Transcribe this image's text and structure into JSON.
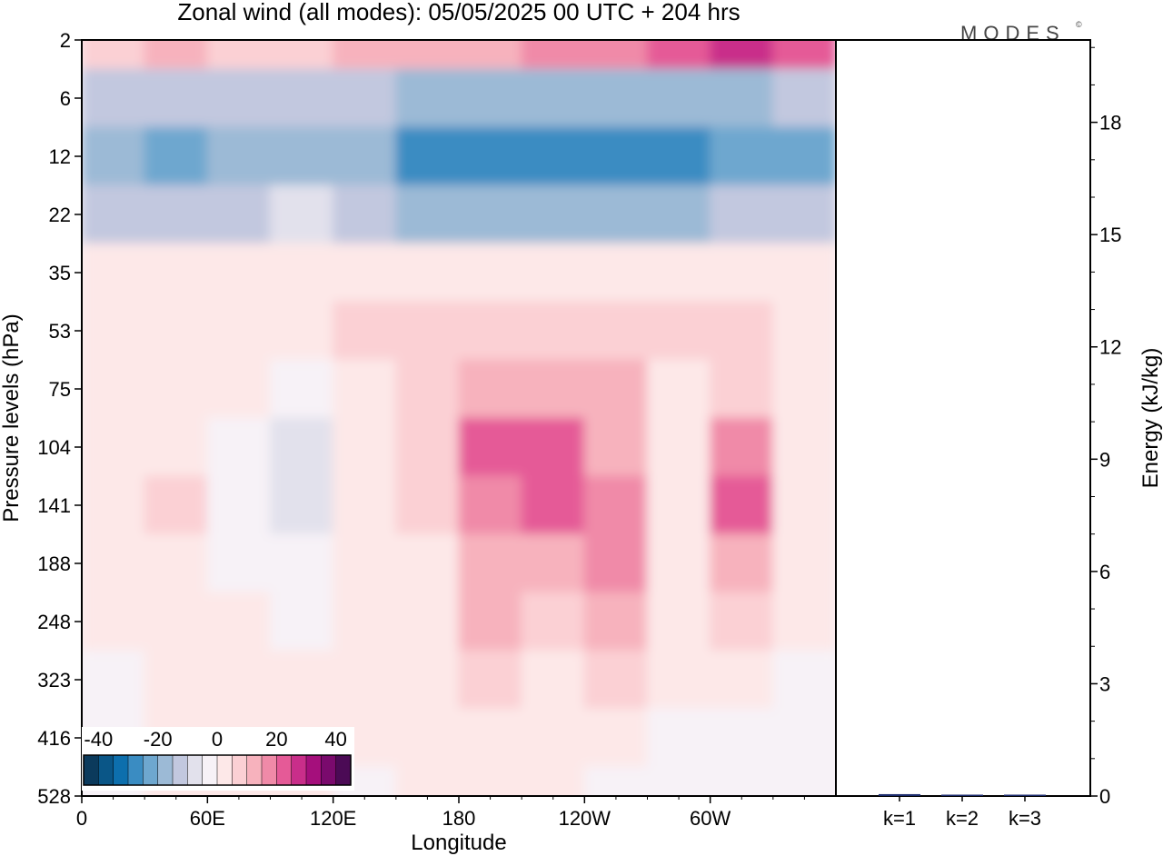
{
  "chart_data": [
    {
      "type": "heatmap",
      "title": "Zonal wind (all modes):  05/05/2025  00 UTC  + 204 hrs",
      "xlabel": "Longitude",
      "ylabel": "Pressure levels (hPa)",
      "x_ticks": [
        "0",
        "60E",
        "120E",
        "180",
        "120W",
        "60W"
      ],
      "x_tick_values_deg": [
        0,
        60,
        120,
        180,
        240,
        300
      ],
      "xlim_deg": [
        0,
        360
      ],
      "y_ticks": [
        "2",
        "6",
        "12",
        "22",
        "35",
        "53",
        "75",
        "104",
        "141",
        "188",
        "248",
        "323",
        "416",
        "528"
      ],
      "y_scale": "categorical pressure levels, top to bottom",
      "colorbar": {
        "tick_labels": [
          "-40",
          "-20",
          "0",
          "20",
          "40"
        ],
        "range": [
          -40,
          40
        ],
        "step": 5,
        "colors": [
          "#0b3a5c",
          "#0a5687",
          "#0d6fad",
          "#3a8cc2",
          "#6ea7cf",
          "#9cbad6",
          "#c2c8df",
          "#e2e1ec",
          "#f7f2f7",
          "#fde8e8",
          "#fbd0d4",
          "#f7b2bd",
          "#f08aa8",
          "#e55a97",
          "#c92e8a",
          "#a50f7c",
          "#7a0a6d",
          "#4b0a55"
        ]
      },
      "summary_grid": {
        "rows": [
          "2",
          "6",
          "12",
          "22",
          "35",
          "53",
          "75",
          "104",
          "141",
          "188",
          "248",
          "323",
          "416",
          "528"
        ],
        "columns_deg": [
          0,
          30,
          60,
          90,
          120,
          150,
          180,
          210,
          240,
          270,
          300,
          330
        ],
        "values": [
          [
            8,
            10,
            6,
            8,
            10,
            12,
            14,
            16,
            18,
            20,
            25,
            20
          ],
          [
            -12,
            -12,
            -14,
            -12,
            -14,
            -16,
            -18,
            -20,
            -20,
            -18,
            -16,
            -14
          ],
          [
            -20,
            -22,
            -20,
            -20,
            -20,
            -28,
            -30,
            -30,
            -28,
            -30,
            -25,
            -22
          ],
          [
            -12,
            -14,
            -12,
            -10,
            -12,
            -16,
            -18,
            -18,
            -16,
            -18,
            -14,
            -12
          ],
          [
            2,
            2,
            2,
            2,
            3,
            4,
            4,
            4,
            4,
            4,
            3,
            2
          ],
          [
            0,
            2,
            3,
            3,
            5,
            7,
            9,
            9,
            8,
            6,
            6,
            4
          ],
          [
            0,
            4,
            2,
            -2,
            3,
            6,
            12,
            14,
            10,
            2,
            8,
            4
          ],
          [
            0,
            4,
            -4,
            -8,
            2,
            7,
            20,
            20,
            12,
            0,
            18,
            2
          ],
          [
            2,
            6,
            -4,
            -10,
            1,
            5,
            18,
            22,
            16,
            4,
            20,
            3
          ],
          [
            1,
            3,
            -2,
            -4,
            1,
            4,
            14,
            14,
            18,
            3,
            14,
            2
          ],
          [
            0,
            2,
            0,
            -1,
            1,
            3,
            10,
            8,
            12,
            2,
            8,
            1
          ],
          [
            -2,
            1,
            0,
            1,
            1,
            2,
            5,
            3,
            6,
            0,
            3,
            -2
          ],
          [
            -4,
            0,
            1,
            1,
            0,
            0,
            1,
            1,
            0,
            -4,
            -2,
            -4
          ],
          [
            -2,
            0,
            1,
            0,
            -1,
            0,
            1,
            0,
            -4,
            -4,
            -2,
            -4
          ]
        ]
      }
    },
    {
      "type": "bar",
      "ylabel": "Energy (kJ/kg)",
      "categories": [
        "k=1",
        "k=2",
        "k=3"
      ],
      "values": [
        0.05,
        0.03,
        0.02
      ],
      "ylim": [
        0,
        20.2
      ],
      "y_ticks": [
        "0",
        "3",
        "6",
        "9",
        "12",
        "15",
        "18"
      ],
      "y_minor_step": 1
    }
  ],
  "brand": "MODES",
  "brand_mark": "©"
}
